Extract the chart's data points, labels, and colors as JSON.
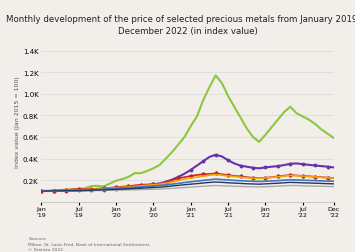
{
  "title": "Monthly development of the price of selected precious metals from January 2019 to\nDecember 2022 (in index value)",
  "ylabel": "Index value (Jan 2015 = 100)",
  "source_text": "Sources:\nMilton, St. Louis Fred, Bank of International Settlements\n© Statista 2022",
  "ylim": [
    0,
    1500
  ],
  "ytick_vals": [
    200,
    400,
    600,
    800,
    1000,
    1200,
    1400
  ],
  "ytick_labels": [
    "0.2K",
    "0.4K",
    "0.6K",
    "0.8K",
    "1.0K",
    "1.2K",
    "1.4K"
  ],
  "n_points": 48,
  "background_color": "#f2efea",
  "plot_bg": "#f2efea",
  "grid_color": "#dddddd",
  "lines": {
    "green": {
      "color": "#8dc63f",
      "values": [
        100,
        102,
        105,
        108,
        112,
        115,
        118,
        125,
        145,
        148,
        142,
        168,
        195,
        210,
        230,
        265,
        265,
        285,
        310,
        340,
        400,
        460,
        530,
        600,
        700,
        790,
        940,
        1060,
        1170,
        1100,
        980,
        880,
        780,
        680,
        600,
        555,
        620,
        690,
        760,
        830,
        880,
        820,
        790,
        760,
        720,
        670,
        630,
        590
      ],
      "marker": null,
      "lw": 1.5
    },
    "purple": {
      "color": "#6633aa",
      "values": [
        100,
        100,
        101,
        102,
        103,
        104,
        105,
        106,
        108,
        110,
        113,
        117,
        122,
        128,
        134,
        141,
        148,
        155,
        162,
        170,
        185,
        205,
        230,
        260,
        295,
        335,
        375,
        415,
        435,
        420,
        385,
        355,
        335,
        325,
        315,
        310,
        318,
        325,
        330,
        340,
        352,
        355,
        348,
        342,
        336,
        330,
        325,
        318
      ],
      "marker": "o",
      "markersize": 1.8,
      "lw": 1.5
    },
    "red": {
      "color": "#cc2222",
      "values": [
        100,
        101,
        102,
        104,
        108,
        115,
        118,
        116,
        118,
        122,
        125,
        130,
        135,
        140,
        145,
        152,
        158,
        160,
        162,
        168,
        178,
        200,
        218,
        228,
        240,
        248,
        255,
        258,
        262,
        255,
        248,
        240,
        235,
        228,
        222,
        218,
        222,
        228,
        235,
        242,
        248,
        244,
        240,
        236,
        232,
        228,
        224,
        220
      ],
      "marker": "D",
      "markersize": 1.8,
      "lw": 1.2
    },
    "orange": {
      "color": "#f0a800",
      "values": [
        100,
        101,
        101,
        102,
        104,
        108,
        110,
        112,
        114,
        118,
        122,
        126,
        130,
        134,
        138,
        143,
        148,
        153,
        158,
        163,
        172,
        184,
        196,
        210,
        220,
        228,
        238,
        246,
        252,
        247,
        240,
        234,
        228,
        222,
        218,
        216,
        220,
        226,
        232,
        238,
        244,
        241,
        238,
        234,
        230,
        226,
        222,
        218
      ],
      "marker": null,
      "lw": 1.2
    },
    "blue": {
      "color": "#4472c4",
      "values": [
        100,
        100,
        101,
        102,
        103,
        105,
        107,
        109,
        111,
        114,
        117,
        120,
        123,
        127,
        130,
        134,
        138,
        142,
        146,
        151,
        157,
        163,
        170,
        178,
        185,
        192,
        198,
        204,
        210,
        206,
        202,
        198,
        195,
        192,
        190,
        188,
        190,
        193,
        196,
        200,
        204,
        202,
        200,
        198,
        196,
        194,
        192,
        190
      ],
      "marker": null,
      "lw": 1.2
    },
    "gray": {
      "color": "#aaaaaa",
      "values": [
        100,
        100,
        100,
        101,
        101,
        102,
        102,
        103,
        103,
        104,
        105,
        106,
        107,
        108,
        110,
        111,
        113,
        115,
        116,
        118,
        121,
        124,
        128,
        132,
        136,
        140,
        144,
        148,
        151,
        148,
        146,
        144,
        142,
        140,
        139,
        138,
        140,
        142,
        145,
        148,
        151,
        150,
        148,
        146,
        145,
        144,
        142,
        141
      ],
      "marker": null,
      "lw": 1.0
    },
    "darkblue": {
      "color": "#1f3864",
      "values": [
        100,
        100,
        101,
        101,
        102,
        103,
        104,
        105,
        107,
        109,
        111,
        113,
        115,
        117,
        120,
        123,
        126,
        129,
        132,
        135,
        140,
        146,
        152,
        158,
        163,
        168,
        174,
        179,
        183,
        180,
        176,
        173,
        170,
        167,
        165,
        163,
        166,
        169,
        172,
        176,
        180,
        178,
        176,
        174,
        172,
        170,
        168,
        166
      ],
      "marker": null,
      "lw": 1.0
    }
  }
}
